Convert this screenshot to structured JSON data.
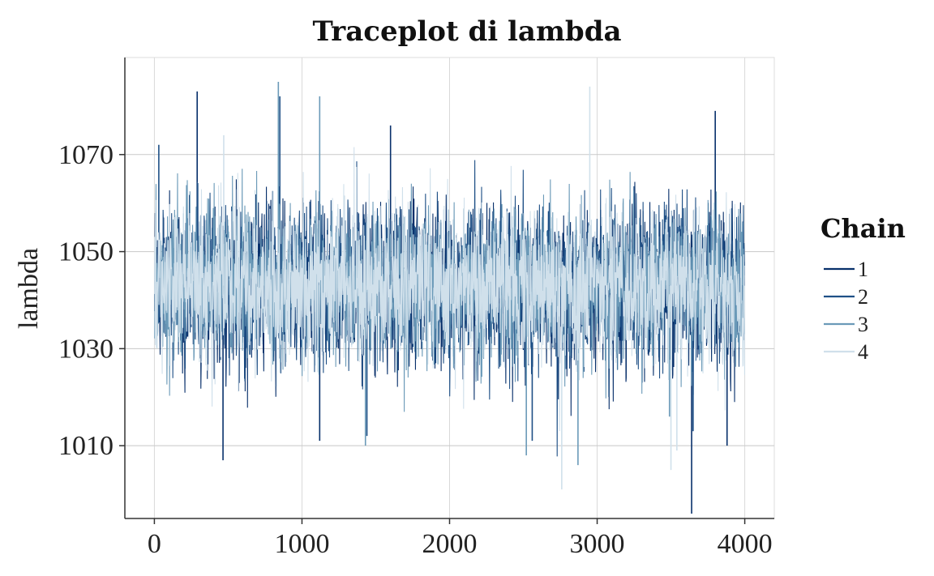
{
  "chart_data": {
    "type": "line",
    "title": "Traceplot di lambda",
    "xlabel": "",
    "ylabel": "lambda",
    "xlim": [
      -200,
      4200
    ],
    "ylim": [
      995,
      1090
    ],
    "x_ticks": [
      0,
      1000,
      2000,
      3000,
      4000
    ],
    "x_tick_labels": [
      "0",
      "1000",
      "2000",
      "3000",
      "4000"
    ],
    "y_ticks": [
      1010,
      1030,
      1050,
      1070
    ],
    "y_tick_labels": [
      "1010",
      "1030",
      "1050",
      "1070"
    ],
    "grid": true,
    "legend": {
      "title": "Chain",
      "position": "right"
    },
    "iterations": [
      1,
      4000
    ],
    "center": 1043,
    "spread_sd": 8,
    "series": [
      {
        "name": "1",
        "color": "#08306b",
        "extremes": [
          [
            290,
            1083
          ],
          [
            465,
            1007
          ],
          [
            1120,
            1011
          ],
          [
            1600,
            1076
          ],
          [
            3640,
            996
          ],
          [
            3800,
            1079
          ],
          [
            3880,
            1010
          ]
        ]
      },
      {
        "name": "2",
        "color": "#1f5086",
        "extremes": [
          [
            30,
            1072
          ],
          [
            850,
            1082
          ],
          [
            1440,
            1012
          ],
          [
            2560,
            1011
          ],
          [
            3650,
            1013
          ]
        ]
      },
      {
        "name": "3",
        "color": "#6b9ab8",
        "extremes": [
          [
            840,
            1085
          ],
          [
            1120,
            1082
          ],
          [
            1430,
            1010
          ],
          [
            2520,
            1008
          ],
          [
            2870,
            1006
          ],
          [
            3490,
            1016
          ]
        ]
      },
      {
        "name": "4",
        "color": "#d0e0eb",
        "extremes": [
          [
            470,
            1074
          ],
          [
            2760,
            1001
          ],
          [
            2950,
            1084
          ],
          [
            3500,
            1005
          ],
          [
            3540,
            1009
          ]
        ]
      }
    ]
  }
}
